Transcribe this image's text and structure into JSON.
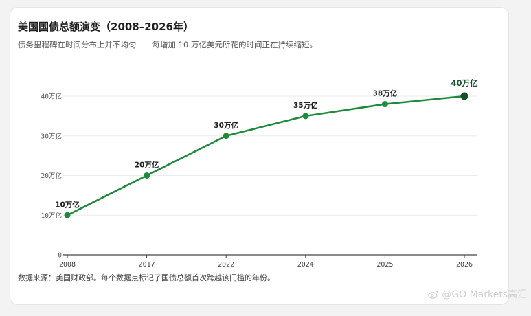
{
  "title": "美国国债总额演变（2008–2026年）",
  "subtitle": "债务里程碑在时间分布上并不均匀——每增加 10 万亿美元所花的时间正在持续缩短。",
  "source": "数据来源：美国财政部。每个数据点标记了国债总额首次跨越该门槛的年份。",
  "watermark": "@GO Markets高汇",
  "colors": {
    "line": "#1e8a3c",
    "point": "#1e8a3c",
    "last_point": "#14512b",
    "grid": "#ebebeb",
    "axis": "#444444"
  },
  "chart_data": {
    "type": "line",
    "categories": [
      "2008",
      "2017",
      "2022",
      "2024",
      "2025",
      "2026"
    ],
    "values": [
      10,
      20,
      30,
      35,
      38,
      40
    ],
    "data_labels": [
      "10万亿",
      "20万亿",
      "30万亿",
      "35万亿",
      "38万亿",
      "40万亿"
    ],
    "ylim": [
      0,
      40
    ],
    "yticks": [
      0,
      10,
      20,
      30,
      40
    ],
    "ytick_labels": [
      "0",
      "10万亿",
      "20万亿",
      "30万亿",
      "40万亿"
    ],
    "grid": true,
    "xlabel": "",
    "ylabel": ""
  }
}
